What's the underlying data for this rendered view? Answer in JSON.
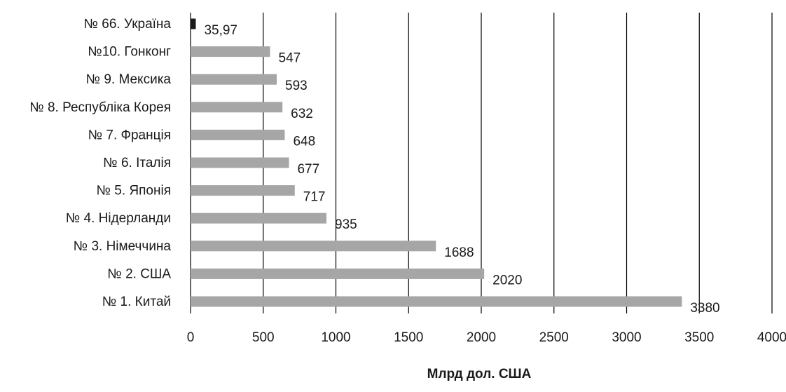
{
  "chart_data": {
    "type": "bar",
    "orientation": "horizontal",
    "categories": [
      "№ 66. Україна",
      "№10. Гонконг",
      "№ 9. Мексика",
      "№ 8. Республіка Корея",
      "№  7. Франція",
      "№ 6. Італія",
      "№ 5. Японія",
      "№ 4. Нідерланди",
      "№ 3. Німеччина",
      "№ 2. США",
      "№ 1. Китай"
    ],
    "values": [
      35.97,
      547,
      593,
      632,
      648,
      677,
      717,
      935,
      1688,
      2020,
      3380
    ],
    "value_labels": [
      "35,97",
      "547",
      "593",
      "632",
      "648",
      "677",
      "717",
      "935",
      "1688",
      "2020",
      "3380"
    ],
    "bar_colors": [
      "#1a1a1a",
      "#a6a6a6",
      "#a6a6a6",
      "#a6a6a6",
      "#a6a6a6",
      "#a6a6a6",
      "#a6a6a6",
      "#a6a6a6",
      "#a6a6a6",
      "#a6a6a6",
      "#a6a6a6"
    ],
    "title": "",
    "xlabel": "Млрд дол. США",
    "ylabel": "",
    "xlim": [
      0,
      4000
    ],
    "xticks": [
      0,
      500,
      1000,
      1500,
      2000,
      2500,
      3000,
      3500,
      4000
    ],
    "grid": "vertical",
    "legend": "none"
  }
}
